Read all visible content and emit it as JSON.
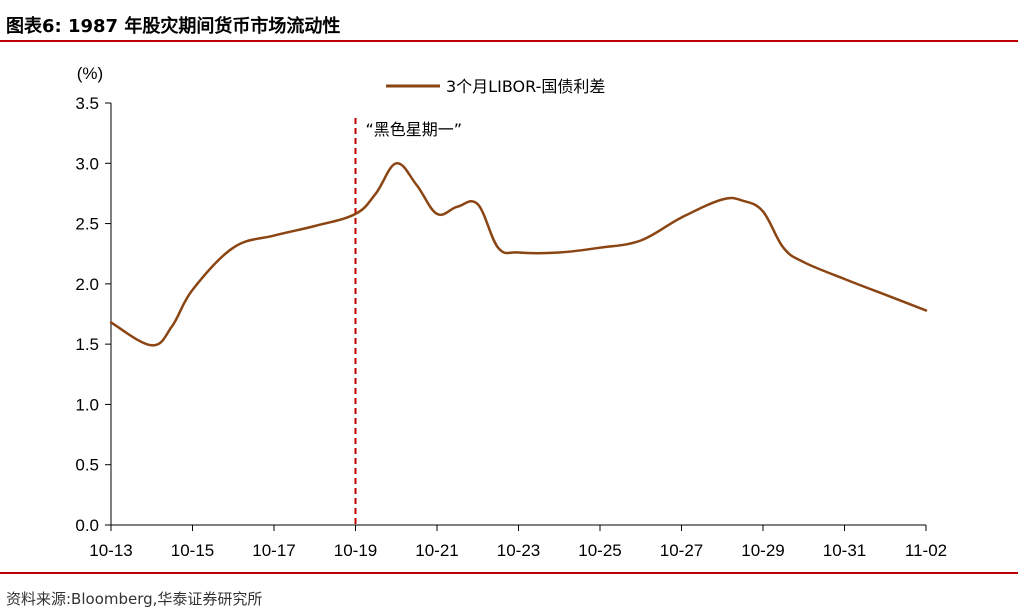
{
  "header": {
    "figure_title": "图表6:  1987 年股灾期间货币市场流动性"
  },
  "footer": {
    "source": "资料来源:Bloomberg,华泰证券研究所"
  },
  "colors": {
    "series": "#8b4513",
    "marker_line": "#c00000",
    "rule": "#c00000"
  },
  "chart_data": {
    "type": "line",
    "ylabel": "(%)",
    "ylim": [
      0.0,
      3.5
    ],
    "y_ticks": [
      "0.0",
      "0.5",
      "1.0",
      "1.5",
      "2.0",
      "2.5",
      "3.0",
      "3.5"
    ],
    "x_ticks": [
      "10-13",
      "10-15",
      "10-17",
      "10-19",
      "10-21",
      "10-23",
      "10-25",
      "10-27",
      "10-29",
      "10-31",
      "11-02"
    ],
    "legend_position": "top-center",
    "grid": false,
    "series": [
      {
        "name": "3个月LIBOR-国债利差",
        "x": [
          "10-13",
          "10-14",
          "10-14.5",
          "10-15",
          "10-16",
          "10-17",
          "10-18",
          "10-19",
          "10-19.5",
          "10-20",
          "10-20.5",
          "10-21",
          "10-21.5",
          "10-22",
          "10-22.5",
          "10-23",
          "10-24",
          "10-25",
          "10-26",
          "10-27",
          "10-28",
          "10-28.5",
          "10-29",
          "10-29.5",
          "10-30",
          "10-31",
          "11-01",
          "11-02"
        ],
        "values": [
          1.68,
          1.49,
          1.65,
          1.95,
          2.3,
          2.4,
          2.48,
          2.58,
          2.75,
          3.0,
          2.82,
          2.58,
          2.64,
          2.66,
          2.3,
          2.26,
          2.26,
          2.3,
          2.36,
          2.55,
          2.7,
          2.69,
          2.6,
          2.3,
          2.18,
          2.04,
          1.91,
          1.78
        ]
      }
    ],
    "annotations": [
      {
        "text": "“黑色星期一”",
        "x": "10-19",
        "style": "dashed-vertical-line"
      }
    ]
  }
}
